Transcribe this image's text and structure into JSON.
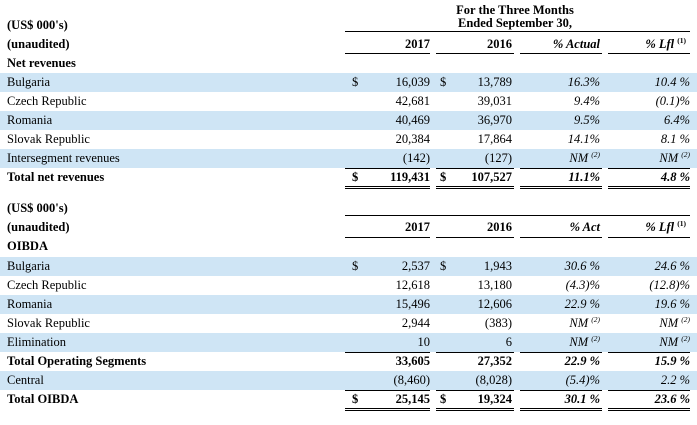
{
  "section1": {
    "period_header_line1": "For the Three Months",
    "period_header_line2": "Ended September 30,",
    "unit_label": "(US$ 000's)",
    "audit_label": "(unaudited)",
    "section_title": "Net revenues",
    "col_2017": "2017",
    "col_2016": "2016",
    "col_actual": "% Actual",
    "col_lfl": "% Lfl",
    "col_lfl_note": "(1)",
    "rows": [
      {
        "label": "Bulgaria",
        "cur1": "$",
        "v2017": "16,039",
        "cur2": "$",
        "v2016": "13,789",
        "actual": "16.3%",
        "lfl": "10.4 %",
        "lfl_note": ""
      },
      {
        "label": "Czech Republic",
        "cur1": "",
        "v2017": "42,681",
        "cur2": "",
        "v2016": "39,031",
        "actual": "9.4%",
        "lfl": "(0.1)%",
        "lfl_note": ""
      },
      {
        "label": "Romania",
        "cur1": "",
        "v2017": "40,469",
        "cur2": "",
        "v2016": "36,970",
        "actual": "9.5%",
        "lfl": "6.4%",
        "lfl_note": ""
      },
      {
        "label": "Slovak Republic",
        "cur1": "",
        "v2017": "20,384",
        "cur2": "",
        "v2016": "17,864",
        "actual": "14.1%",
        "lfl": "8.1 %",
        "lfl_note": ""
      },
      {
        "label": "Intersegment revenues",
        "cur1": "",
        "v2017": "(142)",
        "cur2": "",
        "v2016": "(127)",
        "actual": "NM",
        "actual_note": "(2)",
        "lfl": "NM",
        "lfl_note": "(2)"
      }
    ],
    "total": {
      "label": "Total net revenues",
      "cur1": "$",
      "v2017": "119,431",
      "cur2": "$",
      "v2016": "107,527",
      "actual": "11.1%",
      "lfl": "4.8 %"
    }
  },
  "section2": {
    "unit_label": "(US$ 000's)",
    "audit_label": "(unaudited)",
    "section_title": "OIBDA",
    "col_2017": "2017",
    "col_2016": "2016",
    "col_actual": "% Act",
    "col_lfl": "% Lfl",
    "col_lfl_note": "(1)",
    "rows": [
      {
        "label": "Bulgaria",
        "cur1": "$",
        "v2017": "2,537",
        "cur2": "$",
        "v2016": "1,943",
        "actual": "30.6 %",
        "actual_note": "",
        "lfl": "24.6 %",
        "lfl_note": ""
      },
      {
        "label": "Czech Republic",
        "cur1": "",
        "v2017": "12,618",
        "cur2": "",
        "v2016": "13,180",
        "actual": "(4.3)%",
        "actual_note": "",
        "lfl": "(12.8)%",
        "lfl_note": ""
      },
      {
        "label": "Romania",
        "cur1": "",
        "v2017": "15,496",
        "cur2": "",
        "v2016": "12,606",
        "actual": "22.9 %",
        "actual_note": "",
        "lfl": "19.6 %",
        "lfl_note": ""
      },
      {
        "label": "Slovak Republic",
        "cur1": "",
        "v2017": "2,944",
        "cur2": "",
        "v2016": "(383)",
        "actual": "NM",
        "actual_note": "(2)",
        "lfl": "NM",
        "lfl_note": "(2)"
      },
      {
        "label": "Elimination",
        "cur1": "",
        "v2017": "10",
        "cur2": "",
        "v2016": "6",
        "actual": "NM",
        "actual_note": "(2)",
        "lfl": "NM",
        "lfl_note": "(2)"
      }
    ],
    "segments_total": {
      "label": "Total Operating Segments",
      "v2017": "33,605",
      "v2016": "27,352",
      "actual": "22.9 %",
      "lfl": "15.9 %"
    },
    "central": {
      "label": "Central",
      "v2017": "(8,460)",
      "v2016": "(8,028)",
      "actual": "(5.4)%",
      "lfl": "2.2 %"
    },
    "total": {
      "label": "Total OIBDA",
      "cur1": "$",
      "v2017": "25,145",
      "cur2": "$",
      "v2016": "19,324",
      "actual": "30.1 %",
      "lfl": "23.6 %"
    }
  }
}
